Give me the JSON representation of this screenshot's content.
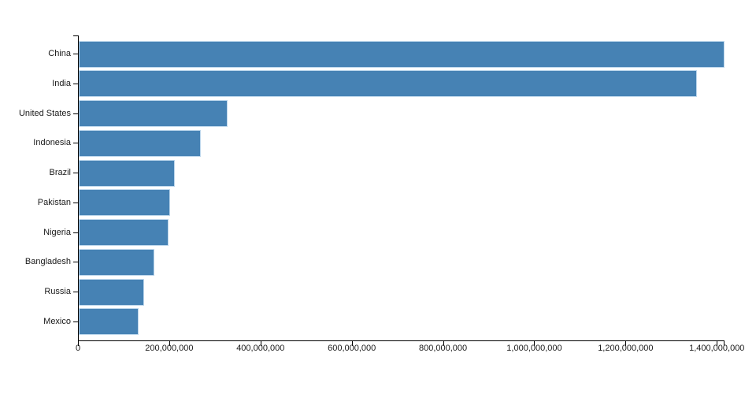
{
  "chart_data": {
    "type": "bar",
    "orientation": "horizontal",
    "title": "",
    "xlabel": "",
    "ylabel": "",
    "grid": false,
    "legend": false,
    "categories": [
      "China",
      "India",
      "United States",
      "Indonesia",
      "Brazil",
      "Pakistan",
      "Nigeria",
      "Bangladesh",
      "Russia",
      "Mexico"
    ],
    "values": [
      1415045928,
      1354051854,
      326766748,
      266794980,
      210867954,
      200813818,
      195875237,
      166368149,
      143964709,
      130759074
    ],
    "xlim": [
      0,
      1415045928
    ],
    "x_ticks": [
      {
        "value": 0,
        "label": "0"
      },
      {
        "value": 200000000,
        "label": "200,000,000"
      },
      {
        "value": 400000000,
        "label": "400,000,000"
      },
      {
        "value": 600000000,
        "label": "600,000,000"
      },
      {
        "value": 800000000,
        "label": "800,000,000"
      },
      {
        "value": 1000000000,
        "label": "1,000,000,000"
      },
      {
        "value": 1200000000,
        "label": "1,200,000,000"
      },
      {
        "value": 1400000000,
        "label": "1,400,000,000"
      }
    ],
    "colors": {
      "bar_fill": "#4682b4",
      "bar_stroke": "#bdd7ec",
      "axis": "#000000",
      "text": "#1a1a1a",
      "background": "#ffffff"
    }
  }
}
